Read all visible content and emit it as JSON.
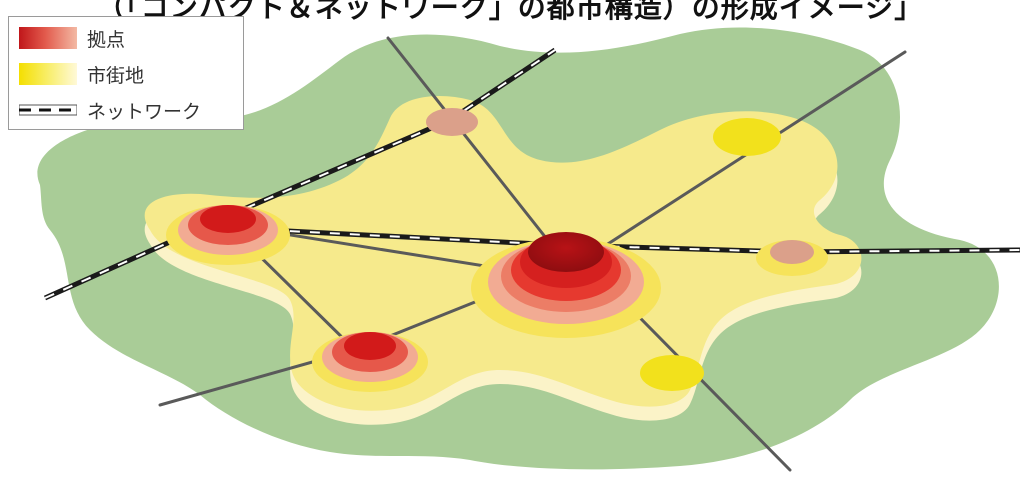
{
  "title": "（「コンパクト＆ネットワーク」の都市構造）の形成イメージ」",
  "legend": {
    "items": [
      {
        "label": "拠点",
        "icon": "hub-swatch"
      },
      {
        "label": "市街地",
        "icon": "urban-area-swatch"
      },
      {
        "label": "ネットワーク",
        "icon": "network-line-swatch"
      }
    ]
  },
  "colors": {
    "green_zone": "#a9cc97",
    "urban_yellow": "#f6ea8c",
    "urban_inner": "#f3e35a",
    "hub_core": "#c8141a",
    "hub_mid": "#e6392f",
    "hub_outer": "#f2ab93",
    "small_hub": "#dba08a",
    "road": "#5a5a5a",
    "rail_dark": "#1a1a1a"
  }
}
